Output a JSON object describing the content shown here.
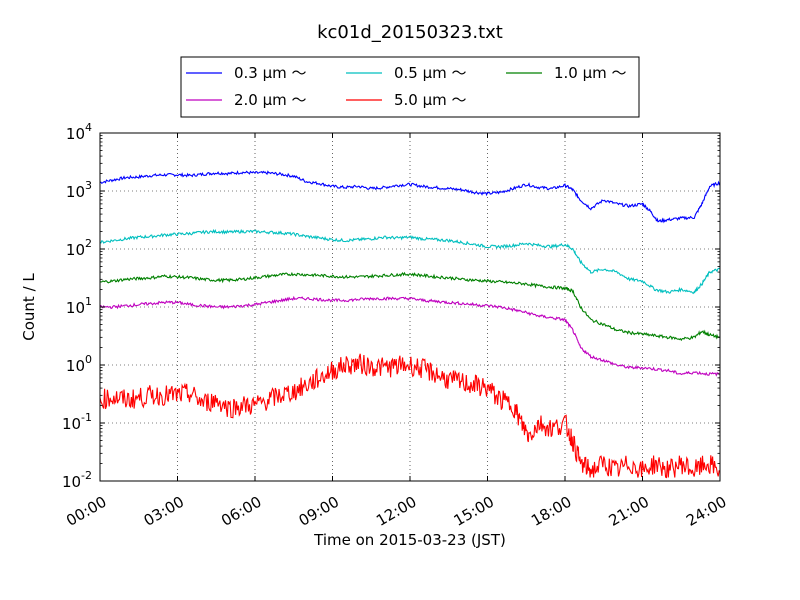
{
  "chart_data": {
    "type": "line",
    "title": "kc01d_20150323.txt",
    "xlabel": "Time on 2015-03-23 (JST)",
    "ylabel": "Count / L",
    "yscale": "log",
    "xlim_hours": [
      0,
      24
    ],
    "ylim": [
      0.01,
      10000
    ],
    "grid": true,
    "legend_position": "top-center",
    "x_ticks": [
      "00:00",
      "03:00",
      "06:00",
      "09:00",
      "12:00",
      "15:00",
      "18:00",
      "21:00",
      "24:00"
    ],
    "y_ticks": [
      {
        "value": 0.01,
        "base": "10",
        "exp": "-2"
      },
      {
        "value": 0.1,
        "base": "10",
        "exp": "-1"
      },
      {
        "value": 1,
        "base": "10",
        "exp": "0"
      },
      {
        "value": 10,
        "base": "10",
        "exp": "1"
      },
      {
        "value": 100,
        "base": "10",
        "exp": "2"
      },
      {
        "value": 1000,
        "base": "10",
        "exp": "3"
      },
      {
        "value": 10000,
        "base": "10",
        "exp": "4"
      }
    ],
    "series": [
      {
        "name": "0.3 μm ～",
        "color": "#0000ff",
        "points": [
          [
            0,
            1400
          ],
          [
            0.5,
            1550
          ],
          [
            1,
            1700
          ],
          [
            1.5,
            1750
          ],
          [
            2,
            1850
          ],
          [
            2.5,
            1900
          ],
          [
            3,
            1900
          ],
          [
            3.5,
            1850
          ],
          [
            4,
            1950
          ],
          [
            4.5,
            2050
          ],
          [
            5,
            2000
          ],
          [
            5.5,
            2100
          ],
          [
            6,
            2050
          ],
          [
            6.5,
            2050
          ],
          [
            7,
            1950
          ],
          [
            7.5,
            1800
          ],
          [
            8,
            1450
          ],
          [
            8.5,
            1350
          ],
          [
            9,
            1200
          ],
          [
            9.5,
            1150
          ],
          [
            10,
            1200
          ],
          [
            10.5,
            1100
          ],
          [
            11,
            1150
          ],
          [
            11.5,
            1250
          ],
          [
            12,
            1300
          ],
          [
            12.5,
            1200
          ],
          [
            13,
            1150
          ],
          [
            13.5,
            1100
          ],
          [
            14,
            1050
          ],
          [
            14.5,
            950
          ],
          [
            15,
            900
          ],
          [
            15.5,
            950
          ],
          [
            16,
            1100
          ],
          [
            16.5,
            1300
          ],
          [
            17,
            1150
          ],
          [
            17.5,
            1100
          ],
          [
            18,
            1250
          ],
          [
            18.3,
            1050
          ],
          [
            18.6,
            700
          ],
          [
            19,
            500
          ],
          [
            19.5,
            700
          ],
          [
            20,
            600
          ],
          [
            20.5,
            550
          ],
          [
            21,
            600
          ],
          [
            21.3,
            450
          ],
          [
            21.6,
            300
          ],
          [
            22,
            320
          ],
          [
            22.5,
            340
          ],
          [
            23,
            350
          ],
          [
            23.3,
            600
          ],
          [
            23.6,
            1200
          ],
          [
            24,
            1400
          ]
        ]
      },
      {
        "name": "0.5 μm ～",
        "color": "#00bfbf",
        "points": [
          [
            0,
            130
          ],
          [
            0.5,
            140
          ],
          [
            1,
            150
          ],
          [
            1.5,
            160
          ],
          [
            2,
            165
          ],
          [
            2.5,
            175
          ],
          [
            3,
            180
          ],
          [
            3.5,
            185
          ],
          [
            4,
            195
          ],
          [
            4.5,
            200
          ],
          [
            5,
            195
          ],
          [
            5.5,
            200
          ],
          [
            6,
            200
          ],
          [
            6.5,
            195
          ],
          [
            7,
            190
          ],
          [
            7.5,
            180
          ],
          [
            8,
            165
          ],
          [
            8.5,
            155
          ],
          [
            9,
            145
          ],
          [
            9.5,
            140
          ],
          [
            10,
            145
          ],
          [
            10.5,
            150
          ],
          [
            11,
            160
          ],
          [
            11.5,
            155
          ],
          [
            12,
            160
          ],
          [
            12.5,
            150
          ],
          [
            13,
            145
          ],
          [
            13.5,
            140
          ],
          [
            14,
            130
          ],
          [
            14.5,
            120
          ],
          [
            15,
            110
          ],
          [
            15.5,
            110
          ],
          [
            16,
            115
          ],
          [
            16.5,
            125
          ],
          [
            17,
            115
          ],
          [
            17.5,
            110
          ],
          [
            18,
            120
          ],
          [
            18.3,
            100
          ],
          [
            18.6,
            60
          ],
          [
            19,
            40
          ],
          [
            19.5,
            45
          ],
          [
            20,
            40
          ],
          [
            20.5,
            30
          ],
          [
            21,
            28
          ],
          [
            21.5,
            20
          ],
          [
            22,
            18
          ],
          [
            22.5,
            20
          ],
          [
            23,
            18
          ],
          [
            23.3,
            25
          ],
          [
            23.6,
            40
          ],
          [
            24,
            45
          ]
        ]
      },
      {
        "name": "1.0 μm ～",
        "color": "#008000",
        "points": [
          [
            0,
            27
          ],
          [
            0.5,
            28
          ],
          [
            1,
            30
          ],
          [
            1.5,
            31
          ],
          [
            2,
            32
          ],
          [
            2.5,
            34
          ],
          [
            3,
            33
          ],
          [
            3.5,
            32
          ],
          [
            4,
            30
          ],
          [
            4.5,
            29
          ],
          [
            5,
            29
          ],
          [
            5.5,
            30
          ],
          [
            6,
            32
          ],
          [
            6.5,
            34
          ],
          [
            7,
            36
          ],
          [
            7.5,
            37
          ],
          [
            8,
            36
          ],
          [
            8.5,
            35
          ],
          [
            9,
            34
          ],
          [
            9.5,
            33
          ],
          [
            10,
            33
          ],
          [
            10.5,
            34
          ],
          [
            11,
            35
          ],
          [
            11.5,
            36
          ],
          [
            12,
            37
          ],
          [
            12.5,
            35
          ],
          [
            13,
            33
          ],
          [
            13.5,
            32
          ],
          [
            14,
            30
          ],
          [
            14.5,
            29
          ],
          [
            15,
            28
          ],
          [
            15.5,
            27
          ],
          [
            16,
            26
          ],
          [
            16.5,
            25
          ],
          [
            17,
            23
          ],
          [
            17.5,
            22
          ],
          [
            18,
            21
          ],
          [
            18.3,
            19
          ],
          [
            18.6,
            10
          ],
          [
            19,
            6
          ],
          [
            19.5,
            5
          ],
          [
            20,
            4
          ],
          [
            20.5,
            3.6
          ],
          [
            21,
            3.4
          ],
          [
            21.5,
            3.2
          ],
          [
            22,
            3.0
          ],
          [
            22.5,
            2.8
          ],
          [
            23,
            3.0
          ],
          [
            23.3,
            3.8
          ],
          [
            23.6,
            3.3
          ],
          [
            24,
            3.0
          ]
        ]
      },
      {
        "name": "2.0 μm ～",
        "color": "#bf00bf",
        "points": [
          [
            0,
            10
          ],
          [
            0.5,
            10
          ],
          [
            1,
            10.5
          ],
          [
            1.5,
            11
          ],
          [
            2,
            11.5
          ],
          [
            2.5,
            12
          ],
          [
            3,
            12
          ],
          [
            3.5,
            11
          ],
          [
            4,
            10.5
          ],
          [
            4.5,
            10
          ],
          [
            5,
            10
          ],
          [
            5.5,
            10.5
          ],
          [
            6,
            11
          ],
          [
            6.5,
            12
          ],
          [
            7,
            13
          ],
          [
            7.5,
            14
          ],
          [
            8,
            14
          ],
          [
            8.5,
            13.5
          ],
          [
            9,
            13
          ],
          [
            9.5,
            13
          ],
          [
            10,
            13.5
          ],
          [
            10.5,
            14
          ],
          [
            11,
            14
          ],
          [
            11.5,
            14
          ],
          [
            12,
            14
          ],
          [
            12.5,
            13
          ],
          [
            13,
            12.5
          ],
          [
            13.5,
            12
          ],
          [
            14,
            11.5
          ],
          [
            14.5,
            11
          ],
          [
            15,
            10.5
          ],
          [
            15.5,
            10
          ],
          [
            16,
            9
          ],
          [
            16.5,
            8
          ],
          [
            17,
            7
          ],
          [
            17.5,
            6.5
          ],
          [
            18,
            6
          ],
          [
            18.3,
            4
          ],
          [
            18.6,
            2
          ],
          [
            19,
            1.4
          ],
          [
            19.5,
            1.2
          ],
          [
            20,
            1.0
          ],
          [
            20.5,
            0.9
          ],
          [
            21,
            0.9
          ],
          [
            21.5,
            0.85
          ],
          [
            22,
            0.8
          ],
          [
            22.5,
            0.7
          ],
          [
            23,
            0.75
          ],
          [
            23.5,
            0.7
          ],
          [
            24,
            0.7
          ]
        ]
      },
      {
        "name": "5.0 μm ～",
        "color": "#ff0000",
        "points": [
          [
            0,
            0.25
          ],
          [
            0.5,
            0.28
          ],
          [
            1,
            0.25
          ],
          [
            1.5,
            0.27
          ],
          [
            2,
            0.3
          ],
          [
            2.5,
            0.3
          ],
          [
            3,
            0.3
          ],
          [
            3.5,
            0.32
          ],
          [
            4,
            0.22
          ],
          [
            4.5,
            0.25
          ],
          [
            5,
            0.18
          ],
          [
            5.5,
            0.2
          ],
          [
            6,
            0.2
          ],
          [
            6.5,
            0.25
          ],
          [
            7,
            0.3
          ],
          [
            7.5,
            0.35
          ],
          [
            8,
            0.45
          ],
          [
            8.5,
            0.6
          ],
          [
            9,
            0.8
          ],
          [
            9.5,
            1.0
          ],
          [
            10,
            1.05
          ],
          [
            10.5,
            0.95
          ],
          [
            11,
            0.9
          ],
          [
            11.5,
            0.95
          ],
          [
            12,
            1.0
          ],
          [
            12.5,
            0.85
          ],
          [
            13,
            0.7
          ],
          [
            13.5,
            0.55
          ],
          [
            14,
            0.5
          ],
          [
            14.5,
            0.45
          ],
          [
            15,
            0.4
          ],
          [
            15.5,
            0.25
          ],
          [
            16,
            0.2
          ],
          [
            16.3,
            0.1
          ],
          [
            16.6,
            0.06
          ],
          [
            17,
            0.1
          ],
          [
            17.5,
            0.08
          ],
          [
            18,
            0.1
          ],
          [
            18.3,
            0.05
          ],
          [
            18.6,
            0.02
          ],
          [
            19,
            0.015
          ],
          [
            19.5,
            0.02
          ],
          [
            20,
            0.015
          ],
          [
            20.5,
            0.02
          ],
          [
            21,
            0.015
          ],
          [
            21.5,
            0.02
          ],
          [
            22,
            0.015
          ],
          [
            22.5,
            0.02
          ],
          [
            23,
            0.015
          ],
          [
            23.5,
            0.02
          ],
          [
            24,
            0.015
          ]
        ]
      }
    ]
  }
}
